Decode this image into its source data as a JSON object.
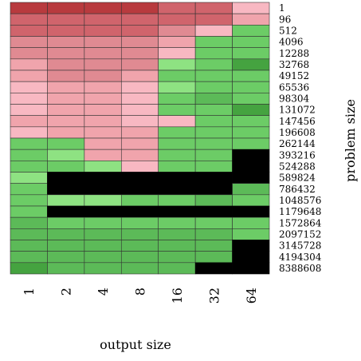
{
  "chart_data": {
    "type": "heatmap",
    "title": "",
    "xlabel": "output size",
    "ylabel": "problem size",
    "x_categories": [
      "1",
      "2",
      "4",
      "8",
      "16",
      "32",
      "64"
    ],
    "y_categories": [
      "1",
      "96",
      "512",
      "4096",
      "12288",
      "32768",
      "49152",
      "65536",
      "98304",
      "131072",
      "147456",
      "196608",
      "262144",
      "393216",
      "524288",
      "589824",
      "786432",
      "1048576",
      "1179648",
      "1572864",
      "2097152",
      "3145728",
      "4194304",
      "8388608"
    ],
    "legend": "none",
    "grid": false,
    "color_scale": {
      "note": "red tones indicate one outcome, green tones another; black cells indicate no data",
      "strong_red": "#b83a3e",
      "red": "#d0646c",
      "pink_red": "#e08a92",
      "pink": "#f0a4ac",
      "light_pink": "#f8b8c2",
      "light_green": "#8ee282",
      "green": "#6ccc66",
      "mid_green": "#5cba58",
      "dark_green": "#45a340",
      "no_data": "#000000"
    },
    "cells": [
      [
        "strong_red",
        "strong_red",
        "strong_red",
        "strong_red",
        "red",
        "red",
        "light_pink"
      ],
      [
        "red",
        "red",
        "red",
        "red",
        "red",
        "red",
        "pink"
      ],
      [
        "red",
        "red",
        "red",
        "red",
        "pink_red",
        "light_pink",
        "green"
      ],
      [
        "pink_red",
        "pink_red",
        "pink_red",
        "pink_red",
        "pink",
        "green",
        "green"
      ],
      [
        "pink_red",
        "pink_red",
        "pink_red",
        "pink_red",
        "light_pink",
        "green",
        "green"
      ],
      [
        "pink",
        "pink_red",
        "pink_red",
        "pink_red",
        "light_green",
        "green",
        "dark_green"
      ],
      [
        "pink",
        "pink_red",
        "pink_red",
        "pink",
        "green",
        "green",
        "green"
      ],
      [
        "light_pink",
        "pink",
        "pink",
        "light_pink",
        "light_green",
        "green",
        "green"
      ],
      [
        "light_pink",
        "pink",
        "pink",
        "light_pink",
        "green",
        "mid_green",
        "green"
      ],
      [
        "light_pink",
        "pink",
        "pink",
        "light_pink",
        "green",
        "green",
        "dark_green"
      ],
      [
        "pink",
        "pink",
        "pink",
        "light_pink",
        "light_pink",
        "green",
        "green"
      ],
      [
        "light_pink",
        "pink",
        "pink",
        "pink",
        "green",
        "green",
        "green"
      ],
      [
        "green",
        "green",
        "pink",
        "pink",
        "green",
        "green",
        "green"
      ],
      [
        "green",
        "light_green",
        "pink",
        "pink",
        "green",
        "green",
        "no_data"
      ],
      [
        "green",
        "green",
        "light_green",
        "light_pink",
        "green",
        "green",
        "no_data"
      ],
      [
        "light_green",
        "no_data",
        "no_data",
        "no_data",
        "no_data",
        "no_data",
        "no_data"
      ],
      [
        "green",
        "no_data",
        "no_data",
        "no_data",
        "no_data",
        "no_data",
        "mid_green"
      ],
      [
        "green",
        "light_green",
        "light_green",
        "green",
        "green",
        "mid_green",
        "green"
      ],
      [
        "green",
        "no_data",
        "no_data",
        "no_data",
        "no_data",
        "no_data",
        "no_data"
      ],
      [
        "mid_green",
        "green",
        "green",
        "green",
        "green",
        "green",
        "green"
      ],
      [
        "mid_green",
        "mid_green",
        "mid_green",
        "mid_green",
        "mid_green",
        "mid_green",
        "green"
      ],
      [
        "mid_green",
        "mid_green",
        "mid_green",
        "mid_green",
        "mid_green",
        "mid_green",
        "no_data"
      ],
      [
        "mid_green",
        "mid_green",
        "mid_green",
        "mid_green",
        "mid_green",
        "mid_green",
        "no_data"
      ],
      [
        "dark_green",
        "mid_green",
        "mid_green",
        "mid_green",
        "mid_green",
        "no_data",
        "no_data"
      ]
    ]
  }
}
